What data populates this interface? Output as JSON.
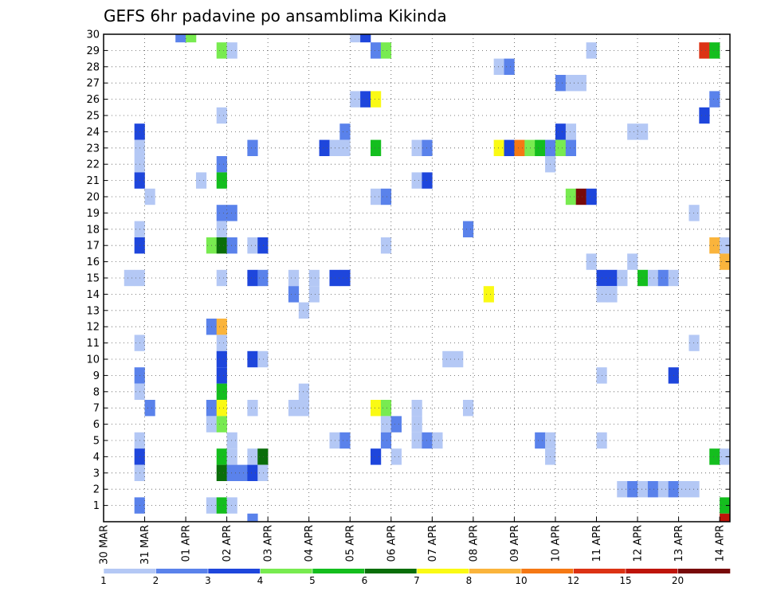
{
  "chart_data": {
    "type": "heatmap",
    "title": "GEFS 6hr padavine po ansamblima Kikinda",
    "x_tick_labels": [
      "30 MAR",
      "31 MAR",
      "01 APR",
      "02 APR",
      "03 APR",
      "04 APR",
      "05 APR",
      "06 APR",
      "07 APR",
      "08 APR",
      "09 APR",
      "10 APR",
      "11 APR",
      "12 APR",
      "13 APR",
      "14 APR"
    ],
    "x_time_steps": 61,
    "x_steps_per_day": 4,
    "y_tick_labels": [
      "1",
      "2",
      "3",
      "4",
      "5",
      "6",
      "7",
      "8",
      "9",
      "10",
      "11",
      "12",
      "13",
      "14",
      "15",
      "16",
      "17",
      "18",
      "19",
      "20",
      "21",
      "22",
      "23",
      "24",
      "25",
      "26",
      "27",
      "28",
      "29",
      "30"
    ],
    "ylim": [
      0,
      30
    ],
    "grid": "dotted",
    "colorbar": {
      "labels": [
        "1",
        "2",
        "3",
        "4",
        "5",
        "6",
        "7",
        "8",
        "10",
        "12",
        "15",
        "20"
      ],
      "colors": [
        "#b4c8f5",
        "#5a82eb",
        "#1e46dc",
        "#78eb50",
        "#14be1e",
        "#0a6e0a",
        "#fafa14",
        "#fab43c",
        "#f57814",
        "#dc3214",
        "#be140a",
        "#780a0a"
      ]
    },
    "cells": [
      [
        7,
        30,
        2
      ],
      [
        8,
        30,
        4
      ],
      [
        24,
        30,
        1
      ],
      [
        25,
        30,
        3
      ],
      [
        11,
        29,
        4
      ],
      [
        12,
        29,
        1
      ],
      [
        26,
        29,
        2
      ],
      [
        27,
        29,
        4
      ],
      [
        47,
        29,
        1
      ],
      [
        58,
        29,
        10
      ],
      [
        59,
        29,
        5
      ],
      [
        38,
        28,
        1
      ],
      [
        39,
        28,
        2
      ],
      [
        44,
        27,
        2
      ],
      [
        45,
        27,
        1
      ],
      [
        46,
        27,
        1
      ],
      [
        24,
        26,
        1
      ],
      [
        25,
        26,
        3
      ],
      [
        26,
        26,
        7
      ],
      [
        59,
        26,
        2
      ],
      [
        11,
        25,
        1
      ],
      [
        58,
        25,
        3
      ],
      [
        3,
        24,
        3
      ],
      [
        23,
        24,
        2
      ],
      [
        44,
        24,
        3
      ],
      [
        45,
        24,
        1
      ],
      [
        51,
        24,
        1
      ],
      [
        52,
        24,
        1
      ],
      [
        3,
        23,
        1
      ],
      [
        14,
        23,
        2
      ],
      [
        21,
        23,
        3
      ],
      [
        22,
        23,
        1
      ],
      [
        23,
        23,
        1
      ],
      [
        26,
        23,
        5
      ],
      [
        30,
        23,
        1
      ],
      [
        31,
        23,
        2
      ],
      [
        38,
        23,
        7
      ],
      [
        39,
        23,
        3
      ],
      [
        40,
        23,
        9
      ],
      [
        41,
        23,
        4
      ],
      [
        42,
        23,
        5
      ],
      [
        43,
        23,
        2
      ],
      [
        44,
        23,
        4
      ],
      [
        45,
        23,
        2
      ],
      [
        3,
        22,
        1
      ],
      [
        11,
        22,
        2
      ],
      [
        43,
        22,
        1
      ],
      [
        3,
        21,
        3
      ],
      [
        9,
        21,
        1
      ],
      [
        11,
        21,
        5
      ],
      [
        30,
        21,
        1
      ],
      [
        31,
        21,
        3
      ],
      [
        4,
        20,
        1
      ],
      [
        26,
        20,
        1
      ],
      [
        27,
        20,
        2
      ],
      [
        45,
        20,
        4
      ],
      [
        46,
        20,
        12
      ],
      [
        47,
        20,
        3
      ],
      [
        11,
        19,
        2
      ],
      [
        12,
        19,
        2
      ],
      [
        57,
        19,
        1
      ],
      [
        3,
        18,
        1
      ],
      [
        11,
        18,
        1
      ],
      [
        35,
        18,
        2
      ],
      [
        3,
        17,
        3
      ],
      [
        10,
        17,
        4
      ],
      [
        11,
        17,
        6
      ],
      [
        12,
        17,
        2
      ],
      [
        14,
        17,
        1
      ],
      [
        15,
        17,
        3
      ],
      [
        27,
        17,
        1
      ],
      [
        59,
        17,
        8
      ],
      [
        60,
        17,
        1
      ],
      [
        47,
        16,
        1
      ],
      [
        51,
        16,
        1
      ],
      [
        60,
        16,
        8
      ],
      [
        2,
        15,
        1
      ],
      [
        3,
        15,
        1
      ],
      [
        11,
        15,
        1
      ],
      [
        14,
        15,
        3
      ],
      [
        15,
        15,
        2
      ],
      [
        18,
        15,
        1
      ],
      [
        20,
        15,
        1
      ],
      [
        22,
        15,
        3
      ],
      [
        23,
        15,
        3
      ],
      [
        48,
        15,
        3
      ],
      [
        49,
        15,
        3
      ],
      [
        50,
        15,
        1
      ],
      [
        52,
        15,
        5
      ],
      [
        53,
        15,
        1
      ],
      [
        54,
        15,
        2
      ],
      [
        55,
        15,
        1
      ],
      [
        18,
        14,
        2
      ],
      [
        20,
        14,
        1
      ],
      [
        37,
        14,
        7
      ],
      [
        48,
        14,
        1
      ],
      [
        49,
        14,
        1
      ],
      [
        19,
        13,
        1
      ],
      [
        10,
        12,
        2
      ],
      [
        11,
        12,
        8
      ],
      [
        3,
        11,
        1
      ],
      [
        11,
        11,
        1
      ],
      [
        57,
        11,
        1
      ],
      [
        11,
        10,
        3
      ],
      [
        14,
        10,
        3
      ],
      [
        15,
        10,
        1
      ],
      [
        33,
        10,
        1
      ],
      [
        34,
        10,
        1
      ],
      [
        3,
        9,
        2
      ],
      [
        11,
        9,
        3
      ],
      [
        48,
        9,
        1
      ],
      [
        55,
        9,
        3
      ],
      [
        3,
        8,
        1
      ],
      [
        11,
        8,
        5
      ],
      [
        19,
        8,
        1
      ],
      [
        4,
        7,
        2
      ],
      [
        10,
        7,
        2
      ],
      [
        11,
        7,
        7
      ],
      [
        14,
        7,
        1
      ],
      [
        18,
        7,
        1
      ],
      [
        19,
        7,
        1
      ],
      [
        26,
        7,
        7
      ],
      [
        27,
        7,
        4
      ],
      [
        30,
        7,
        1
      ],
      [
        35,
        7,
        1
      ],
      [
        10,
        6,
        1
      ],
      [
        11,
        6,
        4
      ],
      [
        27,
        6,
        1
      ],
      [
        28,
        6,
        2
      ],
      [
        30,
        6,
        1
      ],
      [
        3,
        5,
        1
      ],
      [
        12,
        5,
        1
      ],
      [
        22,
        5,
        1
      ],
      [
        23,
        5,
        2
      ],
      [
        27,
        5,
        2
      ],
      [
        30,
        5,
        1
      ],
      [
        31,
        5,
        2
      ],
      [
        32,
        5,
        1
      ],
      [
        42,
        5,
        2
      ],
      [
        43,
        5,
        1
      ],
      [
        48,
        5,
        1
      ],
      [
        3,
        4,
        3
      ],
      [
        11,
        4,
        5
      ],
      [
        12,
        4,
        1
      ],
      [
        14,
        4,
        1
      ],
      [
        15,
        4,
        6
      ],
      [
        26,
        4,
        3
      ],
      [
        28,
        4,
        1
      ],
      [
        43,
        4,
        1
      ],
      [
        59,
        4,
        5
      ],
      [
        60,
        4,
        1
      ],
      [
        3,
        3,
        1
      ],
      [
        11,
        3,
        6
      ],
      [
        12,
        3,
        2
      ],
      [
        13,
        3,
        2
      ],
      [
        14,
        3,
        3
      ],
      [
        15,
        3,
        1
      ],
      [
        50,
        2,
        1
      ],
      [
        51,
        2,
        2
      ],
      [
        52,
        2,
        1
      ],
      [
        53,
        2,
        2
      ],
      [
        54,
        2,
        1
      ],
      [
        55,
        2,
        2
      ],
      [
        56,
        2,
        1
      ],
      [
        57,
        2,
        1
      ],
      [
        3,
        1,
        2
      ],
      [
        10,
        1,
        1
      ],
      [
        11,
        1,
        5
      ],
      [
        12,
        1,
        1
      ],
      [
        60,
        1,
        5
      ],
      [
        14,
        0,
        2
      ],
      [
        60,
        0,
        11
      ]
    ]
  }
}
